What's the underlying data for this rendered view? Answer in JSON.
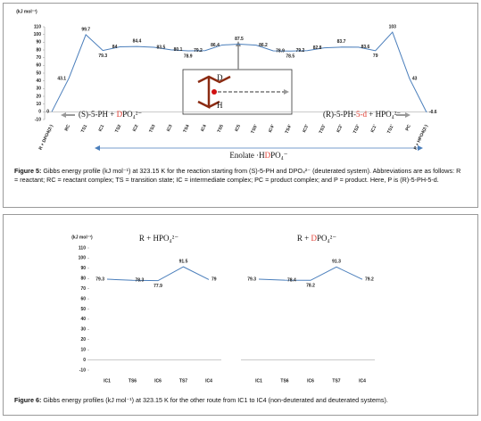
{
  "chart_data": [
    {
      "type": "line",
      "y_label": "(kJ mol⁻¹)",
      "categories": [
        "R + DPO4(2-)",
        "RC",
        "TS1",
        "IC1",
        "TS2",
        "IC2",
        "TS3",
        "IC3",
        "TS4",
        "IC4",
        "TS5",
        "IC5",
        "TS5'",
        "IC4'",
        "TS4'",
        "IC3'",
        "TS3'",
        "IC2'",
        "TS2'",
        "IC1'",
        "TS1'",
        "PC",
        "P + HPO4(2-)"
      ],
      "series": [
        {
          "color": "#4a7ebb",
          "values": [
            0,
            43.1,
            99.7,
            79.3,
            84.0,
            84.4,
            83.5,
            80.1,
            78.9,
            79.2,
            86.4,
            87.5,
            86.2,
            78.9,
            78.5,
            79.2,
            82.8,
            83.7,
            83.6,
            79.0,
            103.0,
            43.0,
            -0.6
          ]
        }
      ],
      "ylim": [
        -10,
        110
      ],
      "yticks": [
        -10,
        0,
        10,
        20,
        30,
        40,
        50,
        60,
        70,
        80,
        90,
        100,
        110
      ],
      "highlight_color": "#e03c31",
      "annotations": {
        "left": [
          "(S)-5-PH + ",
          "D",
          "PO₄²⁻"
        ],
        "right": [
          "(R)-5-PH-",
          "5-d",
          " + HPO₄²⁻"
        ],
        "bottom": [
          "Enolate ·H",
          "D",
          "PO₄⁻"
        ],
        "inset": [
          "D",
          "H"
        ]
      }
    },
    {
      "type": "line",
      "y_label": "(kJ mol⁻¹)",
      "title": [
        "R + HPO₄²⁻"
      ],
      "highlight_color": "#e03c31",
      "categories": [
        "IC1",
        "TS6",
        "IC6",
        "TS7",
        "IC4"
      ],
      "series": [
        {
          "color": "#4a7ebb",
          "values": [
            79.3,
            78.3,
            77.9,
            91.5,
            79.0
          ]
        }
      ],
      "ylim": [
        -10,
        110
      ],
      "yticks": [
        -10,
        0,
        10,
        20,
        30,
        40,
        50,
        60,
        70,
        80,
        90,
        100,
        110
      ]
    },
    {
      "type": "line",
      "title": [
        "R + ",
        "D",
        "PO₄²⁻"
      ],
      "highlight_color": "#e03c31",
      "categories": [
        "IC1",
        "TS6",
        "IC6",
        "TS7",
        "IC4"
      ],
      "series": [
        {
          "color": "#4a7ebb",
          "values": [
            79.3,
            78.4,
            78.2,
            91.3,
            79.2
          ]
        }
      ],
      "ylim": [
        -10,
        110
      ]
    }
  ],
  "captions": [
    {
      "label": "Figure 5:",
      "text": " Gibbs energy profile (kJ mol⁻¹) at 323.15 K for the reaction starting from (S)-5-PH and DPO₄²⁻ (deuterated system). Abbreviations are as follows: R = reactant; RC = reactant complex; TS = transition state; IC = intermediate complex; PC = product complex; and P = product. Here, P is (R)-5-PH-5-d."
    },
    {
      "label": "Figure 6:",
      "text": " Gibbs energy profiles (kJ mol⁻¹) at 323.15 K for the other route from IC1 to IC4 (non-deuterated and deuterated systems)."
    }
  ]
}
